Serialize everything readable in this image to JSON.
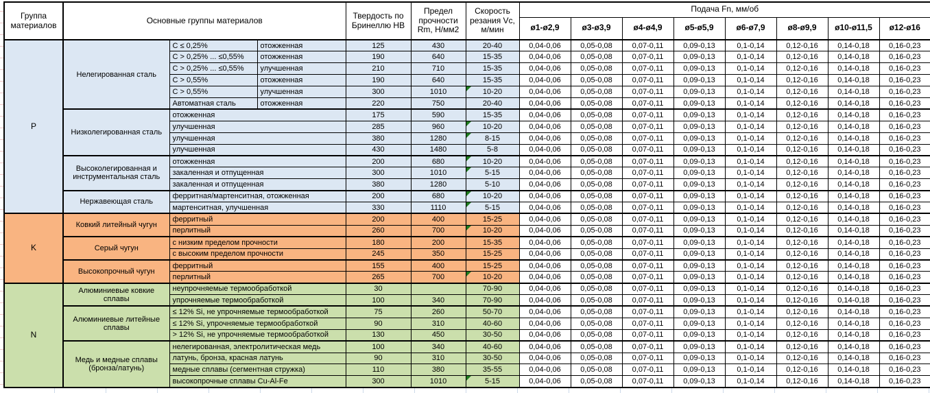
{
  "colors": {
    "p": "#DCE7F3",
    "k": "#F9B481",
    "n": "#CBDFAC",
    "note": "#1E7B1E"
  },
  "table_header": {
    "group": "Группа материалов",
    "materials": "Основные группы материалов",
    "hardness": "Твердость по Бринеллю HB",
    "strength": "Предел прочности Rm, Н/мм2",
    "speed": "Скорость резания Vc, м/мин",
    "feed": "Подача Fn, мм/об",
    "feed_diameters": [
      "ø1-ø2,9",
      "ø3-ø3,9",
      "ø4-ø4,9",
      "ø5-ø5,9",
      "ø6-ø7,9",
      "ø8-ø9,9",
      "ø10-ø11,5",
      "ø12-ø16"
    ]
  },
  "feed_values": [
    "0,04-0,06",
    "0,05-0,08",
    "0,07-0,11",
    "0,09-0,13",
    "0,1-0,14",
    "0,12-0,16",
    "0,14-0,18",
    "0,16-0,23"
  ],
  "groups": [
    {
      "code": "P",
      "sections": [
        {
          "name": "Нелегированная сталь",
          "rows": [
            {
              "sub": "C ≤ 0,25%",
              "state": "отожженная",
              "hb": "125",
              "rm": "430",
              "vc": "20-40",
              "note": false
            },
            {
              "sub": "C > 0,25% ... ≤0,55%",
              "state": "отожженная",
              "hb": "190",
              "rm": "640",
              "vc": "15-35",
              "note": false
            },
            {
              "sub": "C > 0,25% ... ≤0,55%",
              "state": "улучшенная",
              "hb": "210",
              "rm": "710",
              "vc": "15-35",
              "note": false
            },
            {
              "sub": "C > 0,55%",
              "state": "отожженная",
              "hb": "190",
              "rm": "640",
              "vc": "15-35",
              "note": false
            },
            {
              "sub": "C > 0,55%",
              "state": "улучшенная",
              "hb": "300",
              "rm": "1010",
              "vc": "10-20",
              "note": true
            },
            {
              "sub": "Автоматная сталь",
              "state": "отожженная",
              "hb": "220",
              "rm": "750",
              "vc": "20-40",
              "note": false
            }
          ]
        },
        {
          "name": "Низколегированная сталь",
          "rows": [
            {
              "sub": "отожженная",
              "hb": "175",
              "rm": "590",
              "vc": "15-35",
              "note": false
            },
            {
              "sub": "улучшенная",
              "hb": "285",
              "rm": "960",
              "vc": "10-20",
              "note": true
            },
            {
              "sub": "улучшенная",
              "hb": "380",
              "rm": "1280",
              "vc": "8-15",
              "note": true
            },
            {
              "sub": "улучшенная",
              "hb": "430",
              "rm": "1480",
              "vc": "5-8",
              "note": false
            }
          ]
        },
        {
          "name": "Высоколегированная и инструментальная сталь",
          "rows": [
            {
              "sub": "отожженная",
              "hb": "200",
              "rm": "680",
              "vc": "10-20",
              "note": true
            },
            {
              "sub": "закаленная и отпущенная",
              "hb": "300",
              "rm": "1010",
              "vc": "5-15",
              "note": true
            },
            {
              "sub": "закаленная и отпущенная",
              "hb": "380",
              "rm": "1280",
              "vc": "5-10",
              "note": false
            }
          ]
        },
        {
          "name": "Нержавеющая сталь",
          "rows": [
            {
              "sub": "ферритная/мартенситная, отожженная",
              "hb": "200",
              "rm": "680",
              "vc": "10-20",
              "note": true
            },
            {
              "sub": "мартенситная, улучшенная",
              "hb": "330",
              "rm": "1110",
              "vc": "5-15",
              "note": true
            }
          ]
        }
      ]
    },
    {
      "code": "K",
      "sections": [
        {
          "name": "Ковкий литейный чугун",
          "rows": [
            {
              "sub": "ферритный",
              "hb": "200",
              "rm": "400",
              "vc": "15-25",
              "note": false
            },
            {
              "sub": "перлитный",
              "hb": "260",
              "rm": "700",
              "vc": "10-20",
              "note": true
            }
          ]
        },
        {
          "name": "Серый чугун",
          "rows": [
            {
              "sub": "с низким пределом прочности",
              "hb": "180",
              "rm": "200",
              "vc": "15-35",
              "note": false
            },
            {
              "sub": "с высоким пределом прочности",
              "hb": "245",
              "rm": "350",
              "vc": "15-25",
              "note": false
            }
          ]
        },
        {
          "name": "Высокопрочный чугун",
          "rows": [
            {
              "sub": "ферритный",
              "hb": "155",
              "rm": "400",
              "vc": "15-25",
              "note": false
            },
            {
              "sub": "перлитный",
              "hb": "265",
              "rm": "700",
              "vc": "10-20",
              "note": true
            }
          ]
        }
      ]
    },
    {
      "code": "N",
      "sections": [
        {
          "name": "Алюминиевые ковкие сплавы",
          "rows": [
            {
              "sub": "неупрочняемые термообработкой",
              "hb": "30",
              "rm": "",
              "vc": "70-90",
              "note": false
            },
            {
              "sub": "упрочняемые термообработкой",
              "hb": "100",
              "rm": "340",
              "vc": "70-90",
              "note": false
            }
          ]
        },
        {
          "name": "Алюминиевые литейные сплавы",
          "rows": [
            {
              "sub": "≤ 12% Si, не упрочняемые термообработкой",
              "hb": "75",
              "rm": "260",
              "vc": "50-70",
              "note": false
            },
            {
              "sub": "≤ 12% Si, упрочняемые термообработкой",
              "hb": "90",
              "rm": "310",
              "vc": "40-60",
              "note": false
            },
            {
              "sub": "> 12% Si, не упрочняемые термообработкой",
              "hb": "130",
              "rm": "450",
              "vc": "30-50",
              "note": false
            }
          ]
        },
        {
          "name": "Медь и медные сплавы (бронза/латунь)",
          "rows": [
            {
              "sub": "нелегированная, электролитическая медь",
              "hb": "100",
              "rm": "340",
              "vc": "40-60",
              "note": false
            },
            {
              "sub": "латунь, бронза, красная латунь",
              "hb": "90",
              "rm": "310",
              "vc": "30-50",
              "note": false
            },
            {
              "sub": "медные сплавы (сегментная стружка)",
              "hb": "110",
              "rm": "380",
              "vc": "35-55",
              "note": false
            },
            {
              "sub": "высокопрочные сплавы Cu-Al-Fe",
              "hb": "300",
              "rm": "1010",
              "vc": "5-15",
              "note": true
            }
          ]
        }
      ]
    }
  ]
}
